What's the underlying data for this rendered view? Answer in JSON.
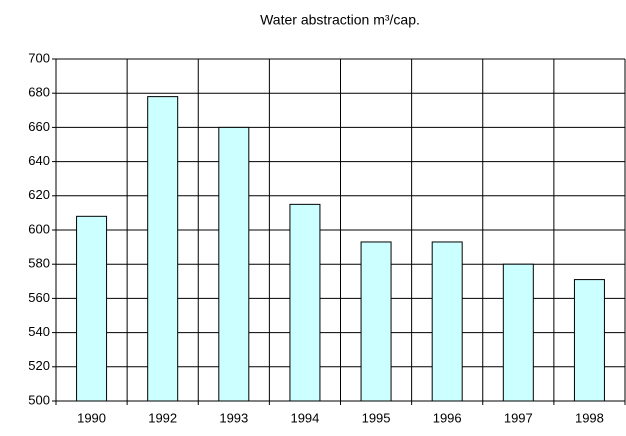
{
  "chart_data": {
    "type": "bar",
    "title": "Water abstraction m³/cap.",
    "categories": [
      "1990",
      "1992",
      "1993",
      "1994",
      "1995",
      "1996",
      "1997",
      "1998"
    ],
    "values": [
      608,
      678,
      660,
      615,
      593,
      593,
      580,
      571
    ],
    "color": "#ccffff",
    "ylim": [
      500,
      700
    ],
    "yticks": [
      500,
      520,
      540,
      560,
      580,
      600,
      620,
      640,
      660,
      680,
      700
    ],
    "grid": true
  }
}
